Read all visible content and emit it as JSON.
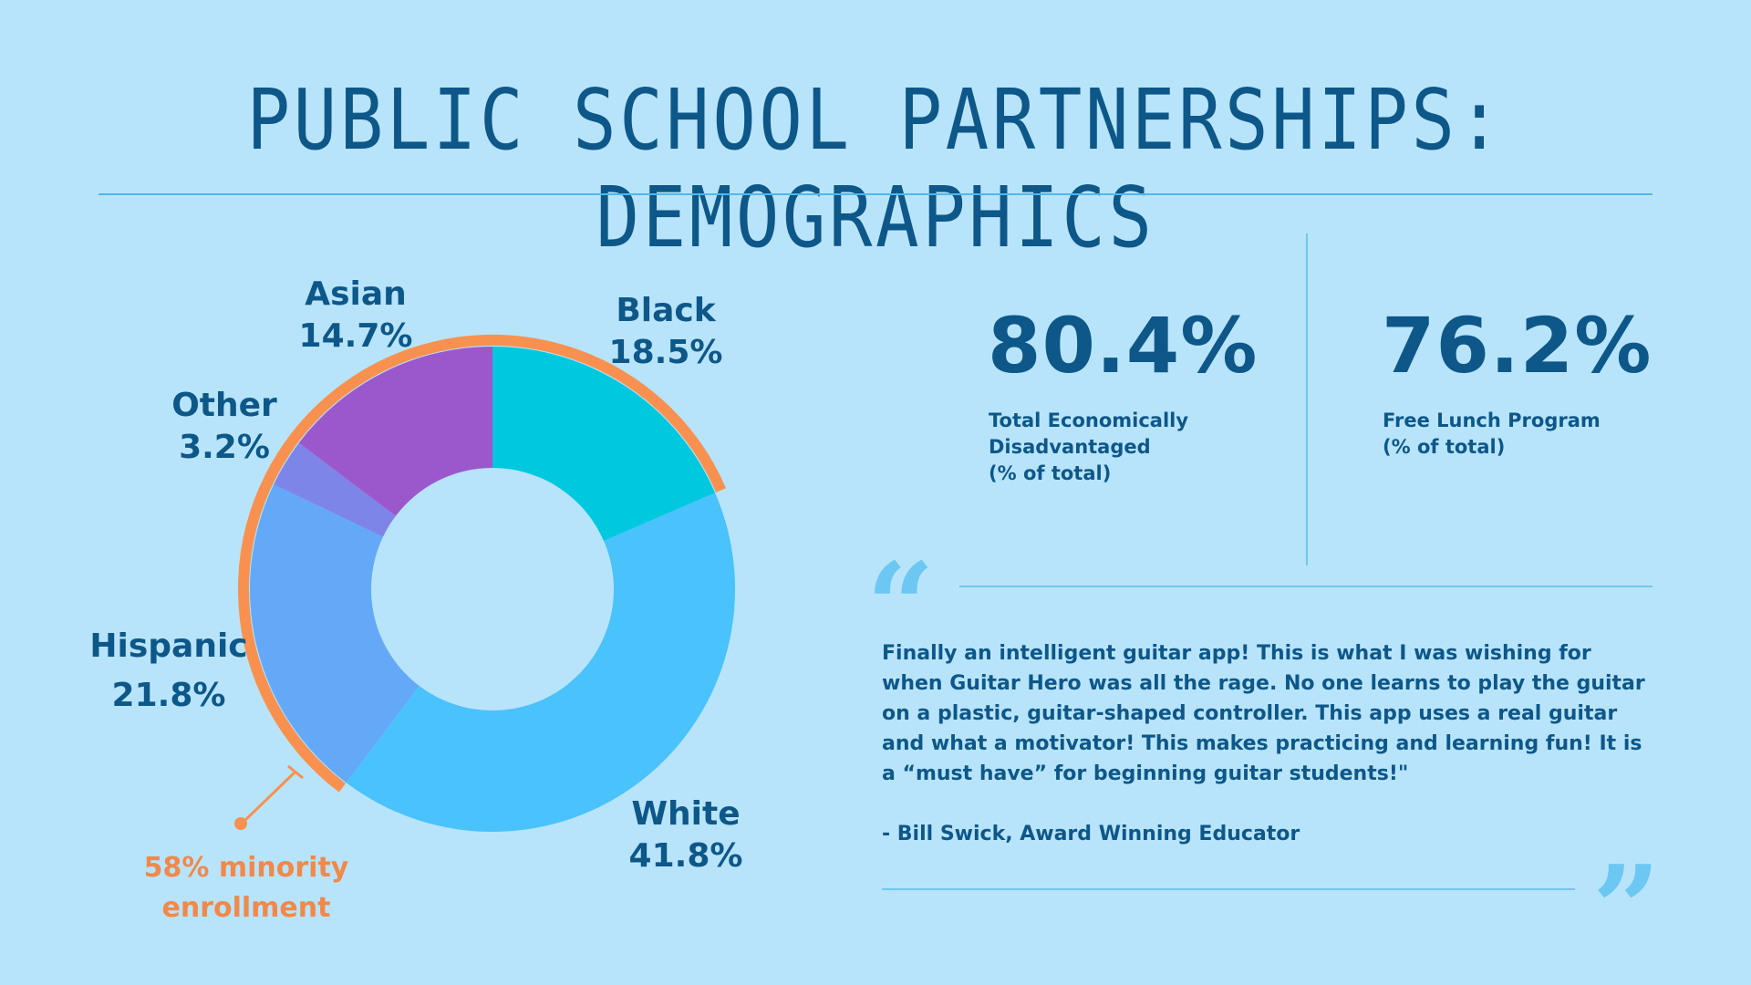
{
  "title": "PUBLIC SCHOOL PARTNERSHIPS: DEMOGRAPHICS",
  "chart_data": {
    "type": "pie",
    "donut": true,
    "categories": [
      "Black",
      "White",
      "Hispanic",
      "Other",
      "Asian"
    ],
    "values": [
      18.5,
      41.8,
      21.8,
      3.2,
      14.7
    ],
    "value_labels": [
      "18.5%",
      "41.8%",
      "21.8%",
      "3.2%",
      "14.7%"
    ],
    "colors": [
      "#00c8df",
      "#4ac2fb",
      "#64a9f7",
      "#7e85e9",
      "#9b58cd"
    ],
    "highlight": {
      "label": "58% minority enrollment",
      "line1": "58% minority",
      "line2": "enrollment",
      "color": "#f8914f",
      "categories": [
        "Black",
        "Hispanic",
        "Other",
        "Asian"
      ]
    }
  },
  "stats": [
    {
      "value": "80.4%",
      "label": "Total Economically\nDisadvantaged\n(% of total)"
    },
    {
      "value": "76.2%",
      "label": "Free Lunch Program\n(% of total)"
    }
  ],
  "quote": {
    "open_mark": "“",
    "close_mark": "”",
    "text": "Finally an intelligent guitar app! This is what I was wishing for when Guitar Hero was all the rage. No one learns to play the guitar on a plastic, guitar-shaped controller. This app uses a real guitar and what a motivator! This makes practicing and learning fun! It is a “must have” for beginning guitar students!\"",
    "author": "- Bill Swick, Award Winning Educator"
  },
  "colors": {
    "background": "#b8e4fb",
    "text": "#0d5789",
    "accent": "#f8914f",
    "rule": "#6fc6ef"
  }
}
